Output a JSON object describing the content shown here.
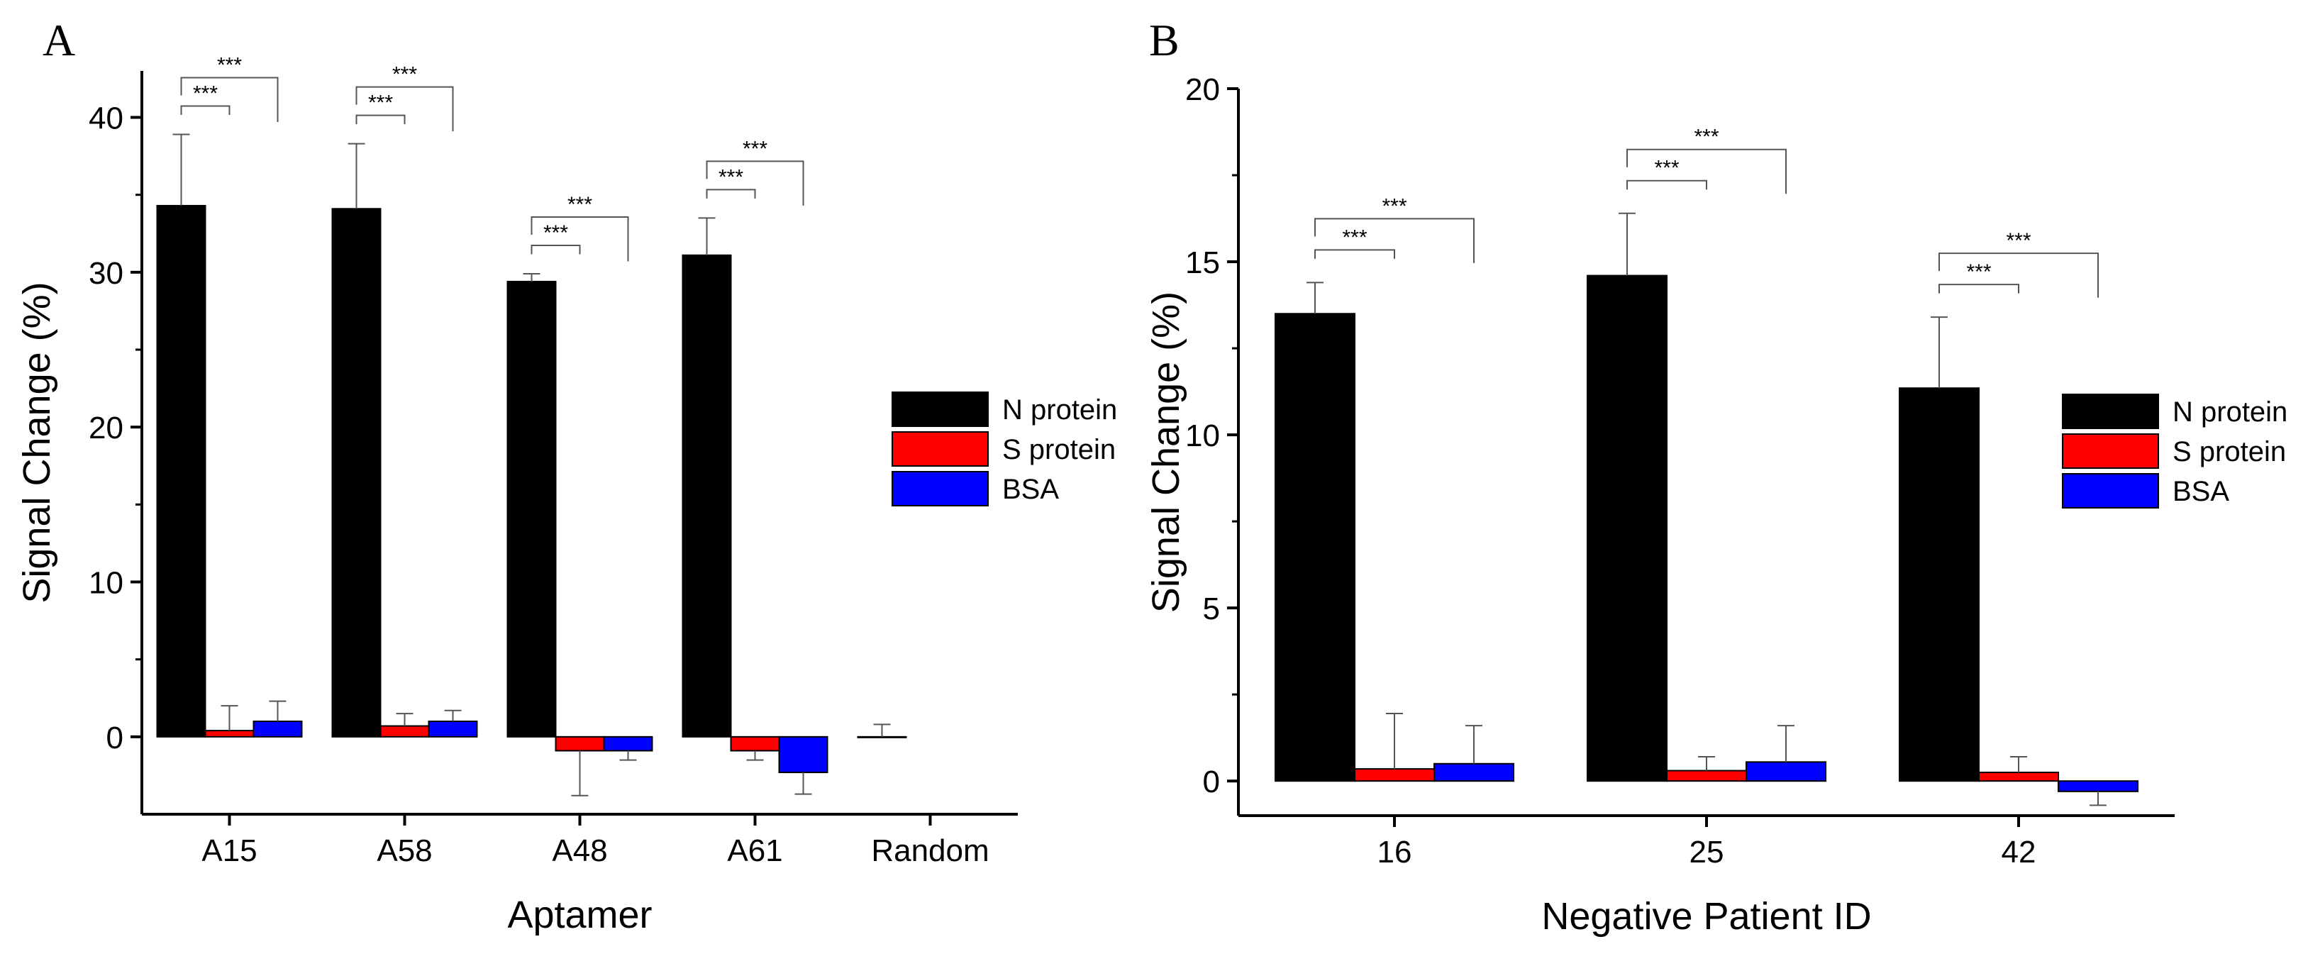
{
  "colors": {
    "n_protein": "#000000",
    "s_protein": "#ff0000",
    "bsa": "#0000ff",
    "axis": "#000000",
    "bracket": "#555555"
  },
  "chart_data": [
    {
      "panel_label": "A",
      "type": "bar",
      "xlabel": "Aptamer",
      "ylabel": "Signal Change (%)",
      "ylim": [
        -5,
        43
      ],
      "yticks": [
        0,
        10,
        20,
        30,
        40
      ],
      "categories": [
        "A15",
        "A58",
        "A48",
        "A61",
        "Random"
      ],
      "series": [
        {
          "name": "N protein",
          "color": "#000000",
          "values": [
            34.3,
            34.1,
            29.4,
            31.1,
            0.0
          ],
          "errors": [
            4.6,
            4.2,
            0.5,
            2.4,
            0.8
          ]
        },
        {
          "name": "S protein",
          "color": "#ff0000",
          "values": [
            0.4,
            0.7,
            -0.9,
            -0.9,
            null
          ],
          "errors": [
            1.6,
            0.8,
            2.9,
            0.6,
            null
          ]
        },
        {
          "name": "BSA",
          "color": "#0000ff",
          "values": [
            1.0,
            1.0,
            -0.9,
            -2.3,
            null
          ],
          "errors": [
            1.3,
            0.7,
            0.6,
            1.4,
            null
          ]
        }
      ],
      "significance": [
        {
          "category": "A15",
          "inner": "***",
          "outer": "***"
        },
        {
          "category": "A58",
          "inner": "***",
          "outer": "***"
        },
        {
          "category": "A48",
          "inner": "***",
          "outer": "***"
        },
        {
          "category": "A61",
          "inner": "***",
          "outer": "***"
        }
      ],
      "legend": {
        "placement": "right-middle",
        "entries": [
          "N protein",
          "S protein",
          "BSA"
        ]
      }
    },
    {
      "panel_label": "B",
      "type": "bar",
      "xlabel": "Negative Patient ID",
      "ylabel": "Signal Change (%)",
      "ylim": [
        -1,
        20
      ],
      "yticks": [
        0,
        5,
        10,
        15,
        20
      ],
      "categories": [
        "16",
        "25",
        "42"
      ],
      "series": [
        {
          "name": "N protein",
          "color": "#000000",
          "values": [
            13.5,
            14.6,
            11.35
          ],
          "errors": [
            0.9,
            1.8,
            2.05
          ]
        },
        {
          "name": "S protein",
          "color": "#ff0000",
          "values": [
            0.35,
            0.3,
            0.25
          ],
          "errors": [
            1.6,
            0.4,
            0.45
          ]
        },
        {
          "name": "BSA",
          "color": "#0000ff",
          "values": [
            0.5,
            0.55,
            -0.3
          ],
          "errors": [
            1.1,
            1.05,
            0.4
          ]
        }
      ],
      "significance": [
        {
          "category": "16",
          "inner": "***",
          "outer": "***"
        },
        {
          "category": "25",
          "inner": "***",
          "outer": "***"
        },
        {
          "category": "42",
          "inner": "***",
          "outer": "***"
        }
      ],
      "legend": {
        "placement": "right-middle",
        "entries": [
          "N protein",
          "S protein",
          "BSA"
        ]
      }
    }
  ]
}
